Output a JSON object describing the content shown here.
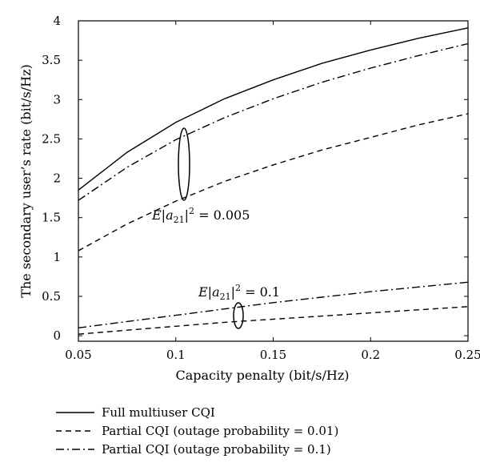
{
  "chart_data": {
    "type": "line",
    "title": "",
    "xlabel": "Capacity penalty (bit/s/Hz)",
    "ylabel": "The secondary user’s rate (bit/s/Hz)",
    "xlim": [
      0.05,
      0.25
    ],
    "ylim": [
      -0.07,
      4.0
    ],
    "xticks": [
      0.05,
      0.1,
      0.15,
      0.2,
      0.25
    ],
    "xtick_labels": [
      "0.05",
      "0.1",
      "0.15",
      "0.2",
      "0.25"
    ],
    "yticks": [
      0,
      0.5,
      1,
      1.5,
      2,
      2.5,
      3,
      3.5,
      4
    ],
    "ytick_labels": [
      "0",
      "0.5",
      "1",
      "1.5",
      "2",
      "2.5",
      "3",
      "3.5",
      "4"
    ],
    "grid": false,
    "legend_position": "below",
    "x": [
      0.05,
      0.075,
      0.1,
      0.125,
      0.15,
      0.175,
      0.2,
      0.225,
      0.25
    ],
    "series": [
      {
        "name": "Full multiuser CQI",
        "style": "solid",
        "values": [
          1.85,
          2.33,
          2.71,
          3.01,
          3.25,
          3.46,
          3.63,
          3.78,
          3.91
        ]
      },
      {
        "name": "Partial CQI (outage probability = 0.01)",
        "style": "dashed",
        "values": [
          1.08,
          1.42,
          1.71,
          1.96,
          2.17,
          2.36,
          2.52,
          2.68,
          2.82
        ]
      },
      {
        "name": "Partial CQI (outage probability = 0.1)",
        "style": "dashdot",
        "values": [
          1.72,
          2.14,
          2.49,
          2.77,
          3.01,
          3.22,
          3.4,
          3.56,
          3.71
        ]
      },
      {
        "name": "",
        "style": "dashed",
        "values": [
          0.02,
          0.07,
          0.12,
          0.17,
          0.21,
          0.25,
          0.29,
          0.33,
          0.37
        ]
      },
      {
        "name": "",
        "style": "dashdot",
        "values": [
          0.1,
          0.18,
          0.26,
          0.34,
          0.42,
          0.49,
          0.56,
          0.62,
          0.68
        ]
      }
    ],
    "annotations": [
      {
        "text_prefix": "E|a",
        "text_sub": "21",
        "text_suffix": "|",
        "text_sup": "2",
        "text_value": " = 0.005"
      },
      {
        "text_prefix": "E|a",
        "text_sub": "21",
        "text_suffix": "|",
        "text_sup": "2",
        "text_value": " = 0.1"
      }
    ]
  }
}
